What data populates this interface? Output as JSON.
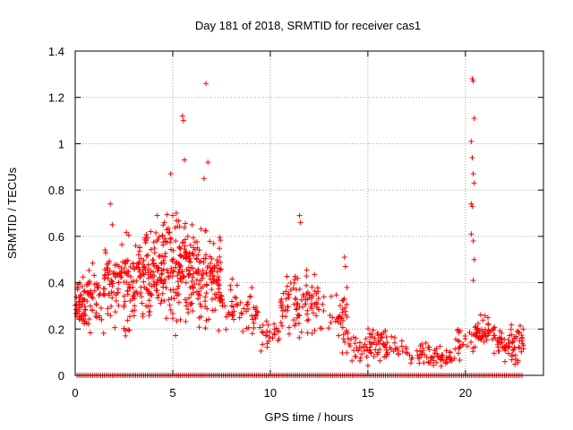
{
  "chart_data": {
    "type": "scatter",
    "title": "Day 181 of 2018, SRMTID for receiver cas1",
    "xlabel": "GPS time / hours",
    "ylabel": "SRMTID / TECUs",
    "xlim": [
      0,
      24
    ],
    "ylim": [
      0,
      1.4
    ],
    "xticks": [
      0,
      5,
      10,
      15,
      20
    ],
    "yticks": [
      0,
      0.2,
      0.4,
      0.6,
      0.8,
      1,
      1.2,
      1.4
    ],
    "ytick_labels": [
      "0",
      "0.2",
      "0.4",
      "0.6",
      "0.8",
      "1",
      "1.2",
      "1.4"
    ],
    "grid": true,
    "marker": "+",
    "color": "#ff0000",
    "series": [
      {
        "name": "SRMTID",
        "clusters": [
          {
            "x_range": [
              0.0,
              0.5
            ],
            "y_center": 0.3,
            "y_spread": 0.1,
            "count": 45
          },
          {
            "x_range": [
              0.5,
              1.5
            ],
            "y_center": 0.33,
            "y_spread": 0.12,
            "count": 55
          },
          {
            "x_range": [
              1.5,
              2.5
            ],
            "y_center": 0.4,
            "y_spread": 0.15,
            "count": 65
          },
          {
            "x_range": [
              2.5,
              3.5
            ],
            "y_center": 0.4,
            "y_spread": 0.18,
            "count": 80
          },
          {
            "x_range": [
              3.5,
              4.5
            ],
            "y_center": 0.46,
            "y_spread": 0.2,
            "count": 90
          },
          {
            "x_range": [
              4.5,
              5.5
            ],
            "y_center": 0.48,
            "y_spread": 0.22,
            "count": 95
          },
          {
            "x_range": [
              5.5,
              6.5
            ],
            "y_center": 0.45,
            "y_spread": 0.2,
            "count": 95
          },
          {
            "x_range": [
              6.5,
              7.5
            ],
            "y_center": 0.42,
            "y_spread": 0.18,
            "count": 80
          },
          {
            "x_range": [
              7.5,
              8.5
            ],
            "y_center": 0.3,
            "y_spread": 0.1,
            "count": 30
          },
          {
            "x_range": [
              8.5,
              9.5
            ],
            "y_center": 0.26,
            "y_spread": 0.09,
            "count": 30
          },
          {
            "x_range": [
              9.5,
              10.5
            ],
            "y_center": 0.18,
            "y_spread": 0.06,
            "count": 25
          },
          {
            "x_range": [
              10.5,
              11.5
            ],
            "y_center": 0.3,
            "y_spread": 0.12,
            "count": 50
          },
          {
            "x_range": [
              11.5,
              12.5
            ],
            "y_center": 0.3,
            "y_spread": 0.12,
            "count": 45
          },
          {
            "x_range": [
              12.5,
              13.5
            ],
            "y_center": 0.28,
            "y_spread": 0.08,
            "count": 15
          },
          {
            "x_range": [
              13.5,
              14.0
            ],
            "y_center": 0.25,
            "y_spread": 0.12,
            "count": 30
          },
          {
            "x_range": [
              14.0,
              15.0
            ],
            "y_center": 0.12,
            "y_spread": 0.06,
            "count": 25
          },
          {
            "x_range": [
              15.0,
              16.0
            ],
            "y_center": 0.14,
            "y_spread": 0.07,
            "count": 50
          },
          {
            "x_range": [
              16.0,
              17.0
            ],
            "y_center": 0.12,
            "y_spread": 0.05,
            "count": 20
          },
          {
            "x_range": [
              17.0,
              18.0
            ],
            "y_center": 0.1,
            "y_spread": 0.04,
            "count": 20
          },
          {
            "x_range": [
              18.0,
              19.5
            ],
            "y_center": 0.08,
            "y_spread": 0.04,
            "count": 45
          },
          {
            "x_range": [
              19.5,
              20.5
            ],
            "y_center": 0.15,
            "y_spread": 0.07,
            "count": 25
          },
          {
            "x_range": [
              20.5,
              21.5
            ],
            "y_center": 0.18,
            "y_spread": 0.06,
            "count": 50
          },
          {
            "x_range": [
              21.5,
              22.0
            ],
            "y_center": 0.14,
            "y_spread": 0.05,
            "count": 20
          },
          {
            "x_range": [
              22.0,
              23.0
            ],
            "y_center": 0.13,
            "y_spread": 0.07,
            "count": 50
          }
        ],
        "outliers": [
          {
            "x": 6.7,
            "y": 1.26
          },
          {
            "x": 5.5,
            "y": 1.12
          },
          {
            "x": 5.55,
            "y": 1.1
          },
          {
            "x": 5.6,
            "y": 0.93
          },
          {
            "x": 6.8,
            "y": 0.92
          },
          {
            "x": 4.9,
            "y": 0.87
          },
          {
            "x": 6.6,
            "y": 0.85
          },
          {
            "x": 20.35,
            "y": 1.28
          },
          {
            "x": 20.4,
            "y": 1.27
          },
          {
            "x": 20.45,
            "y": 1.11
          },
          {
            "x": 20.3,
            "y": 1.01
          },
          {
            "x": 20.35,
            "y": 0.94
          },
          {
            "x": 20.4,
            "y": 0.87
          },
          {
            "x": 20.45,
            "y": 0.83
          },
          {
            "x": 20.3,
            "y": 0.74
          },
          {
            "x": 20.35,
            "y": 0.73
          },
          {
            "x": 20.3,
            "y": 0.61
          },
          {
            "x": 20.4,
            "y": 0.58
          },
          {
            "x": 20.45,
            "y": 0.5
          },
          {
            "x": 20.4,
            "y": 0.41
          },
          {
            "x": 11.5,
            "y": 0.69
          },
          {
            "x": 11.55,
            "y": 0.66
          },
          {
            "x": 1.8,
            "y": 0.74
          },
          {
            "x": 1.9,
            "y": 0.65
          },
          {
            "x": 13.8,
            "y": 0.51
          },
          {
            "x": 13.85,
            "y": 0.47
          }
        ],
        "baseline": {
          "y": 0,
          "x_range": [
            0.1,
            22.9
          ],
          "spacing": 0.1
        }
      }
    ]
  }
}
